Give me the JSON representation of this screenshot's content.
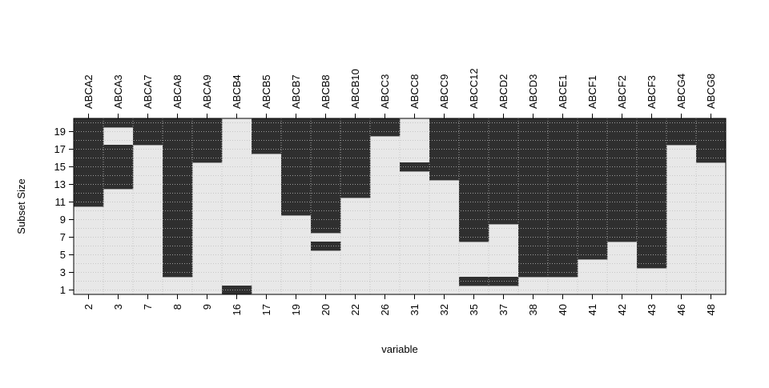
{
  "chart_data": {
    "type": "heatmap",
    "xlabel": "variable",
    "ylabel": "Subset Size",
    "x_ticks_bottom": [
      "2",
      "3",
      "7",
      "8",
      "9",
      "16",
      "17",
      "19",
      "20",
      "22",
      "26",
      "31",
      "32",
      "35",
      "37",
      "38",
      "40",
      "41",
      "42",
      "43",
      "46",
      "48"
    ],
    "x_ticks_top": [
      "ABCA2",
      "ABCA3",
      "ABCA7",
      "ABCA8",
      "ABCA9",
      "ABCB4",
      "ABCB5",
      "ABCB7",
      "ABCB8",
      "ABCB10",
      "ABCC3",
      "ABCC8",
      "ABCC9",
      "ABCC12",
      "ABCD2",
      "ABCD3",
      "ABCE1",
      "ABCF1",
      "ABCF2",
      "ABCF3",
      "ABCG4",
      "ABCG8"
    ],
    "y_ticks": [
      "1",
      "3",
      "5",
      "7",
      "9",
      "11",
      "13",
      "15",
      "17",
      "19"
    ],
    "ylim": [
      0.5,
      20.5
    ],
    "grid": true,
    "colors": {
      "selected": "#2f2f2f",
      "unselected": "#e8e8e8",
      "grid": "#bdbdbd"
    },
    "selected_subset_sizes": [
      [
        11,
        12,
        13,
        14,
        15,
        16,
        17,
        18,
        19,
        20
      ],
      [
        13,
        14,
        15,
        16,
        17,
        20
      ],
      [
        18,
        19,
        20
      ],
      [
        3,
        4,
        5,
        6,
        7,
        8,
        9,
        10,
        11,
        12,
        13,
        14,
        15,
        16,
        17,
        18,
        19,
        20
      ],
      [
        16,
        17,
        18,
        19,
        20
      ],
      [
        1
      ],
      [
        17,
        18,
        19,
        20
      ],
      [
        10,
        11,
        12,
        13,
        14,
        15,
        16,
        17,
        18,
        19,
        20
      ],
      [
        6,
        8,
        9,
        10,
        11,
        12,
        13,
        14,
        15,
        16,
        17,
        18,
        19,
        20
      ],
      [
        12,
        13,
        14,
        15,
        16,
        17,
        18,
        19,
        20
      ],
      [
        19,
        20
      ],
      [
        15
      ],
      [
        14,
        15,
        16,
        17,
        18,
        19,
        20
      ],
      [
        2,
        7,
        8,
        9,
        10,
        11,
        12,
        13,
        14,
        15,
        16,
        17,
        18,
        19,
        20
      ],
      [
        2,
        9,
        10,
        11,
        12,
        13,
        14,
        15,
        16,
        17,
        18,
        19,
        20
      ],
      [
        3,
        4,
        5,
        6,
        7,
        8,
        9,
        10,
        11,
        12,
        13,
        14,
        15,
        16,
        17,
        18,
        19,
        20
      ],
      [
        3,
        4,
        5,
        6,
        7,
        8,
        9,
        10,
        11,
        12,
        13,
        14,
        15,
        16,
        17,
        18,
        19,
        20
      ],
      [
        5,
        6,
        7,
        8,
        9,
        10,
        11,
        12,
        13,
        14,
        15,
        16,
        17,
        18,
        19,
        20
      ],
      [
        7,
        8,
        9,
        10,
        11,
        12,
        13,
        14,
        15,
        16,
        17,
        18,
        19,
        20
      ],
      [
        4,
        5,
        6,
        7,
        8,
        9,
        10,
        11,
        12,
        13,
        14,
        15,
        16,
        17,
        18,
        19,
        20
      ],
      [
        18,
        19,
        20
      ],
      [
        16,
        17,
        18,
        19,
        20
      ]
    ]
  }
}
